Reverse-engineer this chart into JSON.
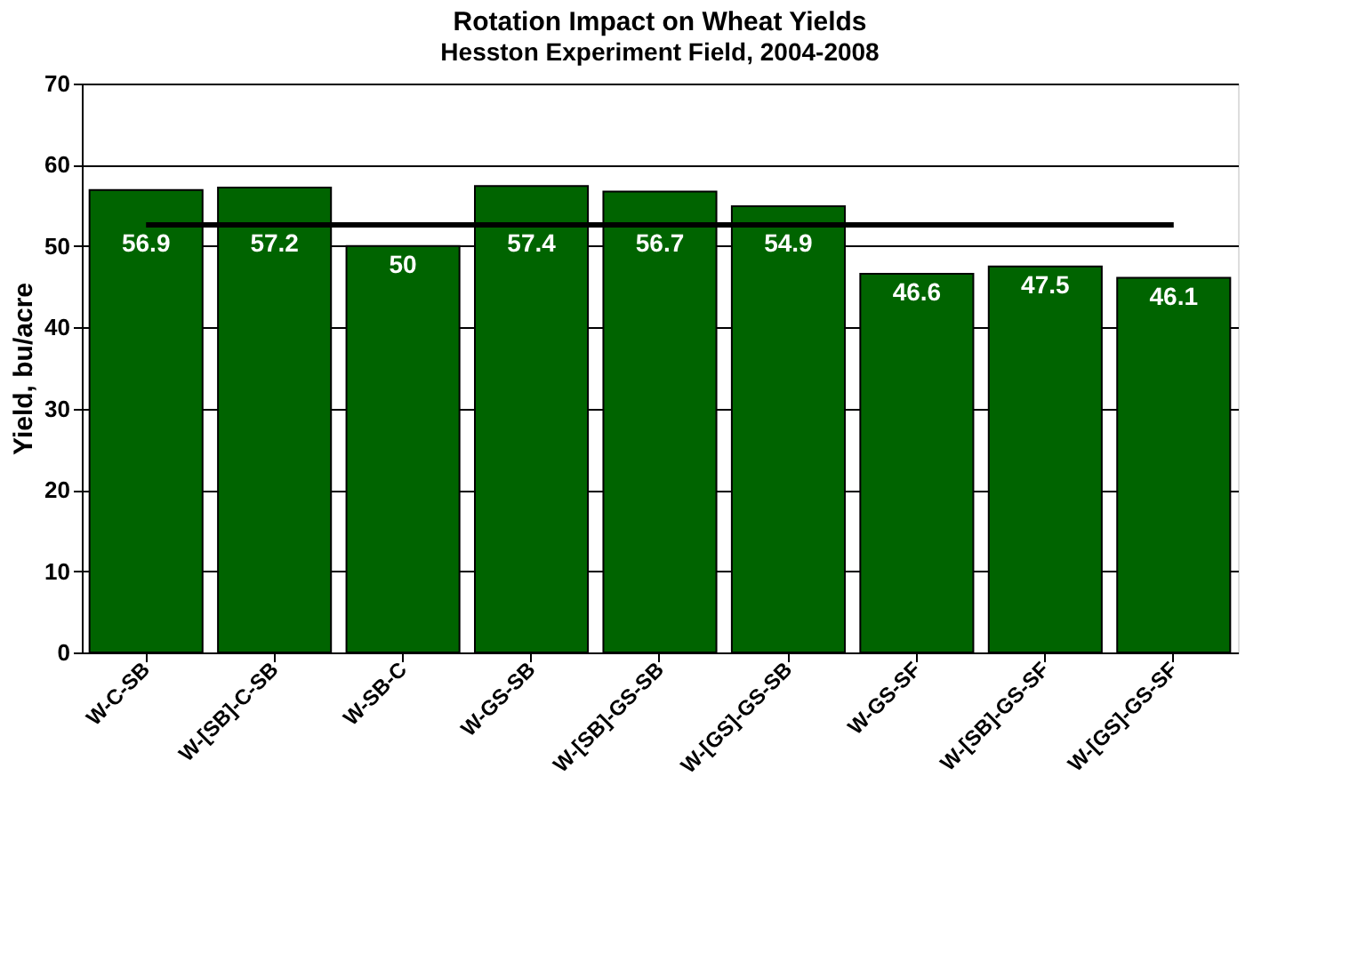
{
  "chart_data": {
    "type": "bar",
    "title": "Rotation Impact on Wheat Yields",
    "subtitle": "Hesston Experiment Field, 2004-2008",
    "ylabel": "Yield, bu/acre",
    "categories": [
      "W-C-SB",
      "W-[SB]-C-SB",
      "W-SB-C",
      "W-GS-SB",
      "W-[SB]-GS-SB",
      "W-[GS]-GS-SB",
      "W-GS-SF",
      "W-[SB]-GS-SF",
      "W-[GS]-GS-SF"
    ],
    "values": [
      56.9,
      57.2,
      50,
      57.4,
      56.7,
      54.9,
      46.6,
      47.5,
      46.1
    ],
    "color": "#006400",
    "ylim": [
      0,
      70
    ],
    "yticks": [
      0,
      10,
      20,
      30,
      40,
      50,
      60,
      70
    ],
    "grid": "y",
    "data_labels": true,
    "ref_lines": [
      {
        "axis": "y",
        "value": 52.6,
        "color": "#000000"
      }
    ]
  }
}
